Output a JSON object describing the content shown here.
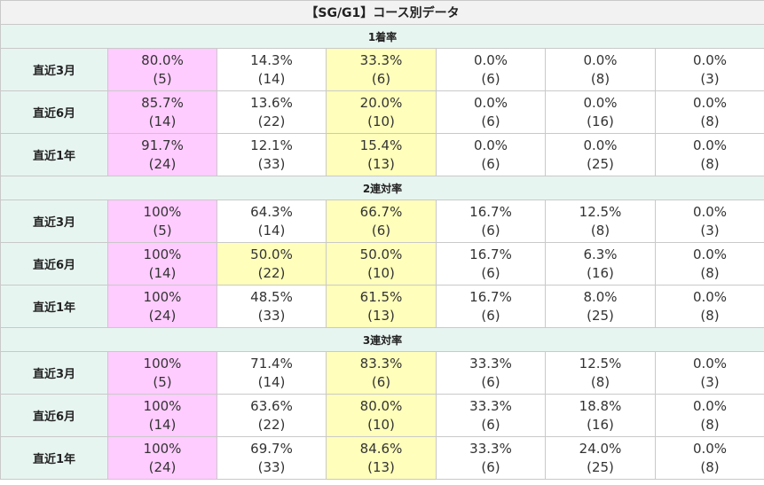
{
  "title": "【SG/G1】コース別データ",
  "colors": {
    "highlight_first": "#ffccff",
    "highlight_third": "#ffffbb"
  },
  "sections": [
    {
      "label": "1着率",
      "rows": [
        {
          "label": "直近3月",
          "cells": [
            {
              "pct": "80.0%",
              "count": "(5)",
              "hl": "pink"
            },
            {
              "pct": "14.3%",
              "count": "(14)",
              "hl": ""
            },
            {
              "pct": "33.3%",
              "count": "(6)",
              "hl": "yellow"
            },
            {
              "pct": "0.0%",
              "count": "(6)",
              "hl": ""
            },
            {
              "pct": "0.0%",
              "count": "(8)",
              "hl": ""
            },
            {
              "pct": "0.0%",
              "count": "(3)",
              "hl": ""
            }
          ]
        },
        {
          "label": "直近6月",
          "cells": [
            {
              "pct": "85.7%",
              "count": "(14)",
              "hl": "pink"
            },
            {
              "pct": "13.6%",
              "count": "(22)",
              "hl": ""
            },
            {
              "pct": "20.0%",
              "count": "(10)",
              "hl": "yellow"
            },
            {
              "pct": "0.0%",
              "count": "(6)",
              "hl": ""
            },
            {
              "pct": "0.0%",
              "count": "(16)",
              "hl": ""
            },
            {
              "pct": "0.0%",
              "count": "(8)",
              "hl": ""
            }
          ]
        },
        {
          "label": "直近1年",
          "cells": [
            {
              "pct": "91.7%",
              "count": "(24)",
              "hl": "pink"
            },
            {
              "pct": "12.1%",
              "count": "(33)",
              "hl": ""
            },
            {
              "pct": "15.4%",
              "count": "(13)",
              "hl": "yellow"
            },
            {
              "pct": "0.0%",
              "count": "(6)",
              "hl": ""
            },
            {
              "pct": "0.0%",
              "count": "(25)",
              "hl": ""
            },
            {
              "pct": "0.0%",
              "count": "(8)",
              "hl": ""
            }
          ]
        }
      ]
    },
    {
      "label": "2連対率",
      "rows": [
        {
          "label": "直近3月",
          "cells": [
            {
              "pct": "100%",
              "count": "(5)",
              "hl": "pink"
            },
            {
              "pct": "64.3%",
              "count": "(14)",
              "hl": ""
            },
            {
              "pct": "66.7%",
              "count": "(6)",
              "hl": "yellow"
            },
            {
              "pct": "16.7%",
              "count": "(6)",
              "hl": ""
            },
            {
              "pct": "12.5%",
              "count": "(8)",
              "hl": ""
            },
            {
              "pct": "0.0%",
              "count": "(3)",
              "hl": ""
            }
          ]
        },
        {
          "label": "直近6月",
          "cells": [
            {
              "pct": "100%",
              "count": "(14)",
              "hl": "pink"
            },
            {
              "pct": "50.0%",
              "count": "(22)",
              "hl": "yellow"
            },
            {
              "pct": "50.0%",
              "count": "(10)",
              "hl": "yellow"
            },
            {
              "pct": "16.7%",
              "count": "(6)",
              "hl": ""
            },
            {
              "pct": "6.3%",
              "count": "(16)",
              "hl": ""
            },
            {
              "pct": "0.0%",
              "count": "(8)",
              "hl": ""
            }
          ]
        },
        {
          "label": "直近1年",
          "cells": [
            {
              "pct": "100%",
              "count": "(24)",
              "hl": "pink"
            },
            {
              "pct": "48.5%",
              "count": "(33)",
              "hl": ""
            },
            {
              "pct": "61.5%",
              "count": "(13)",
              "hl": "yellow"
            },
            {
              "pct": "16.7%",
              "count": "(6)",
              "hl": ""
            },
            {
              "pct": "8.0%",
              "count": "(25)",
              "hl": ""
            },
            {
              "pct": "0.0%",
              "count": "(8)",
              "hl": ""
            }
          ]
        }
      ]
    },
    {
      "label": "3連対率",
      "rows": [
        {
          "label": "直近3月",
          "cells": [
            {
              "pct": "100%",
              "count": "(5)",
              "hl": "pink"
            },
            {
              "pct": "71.4%",
              "count": "(14)",
              "hl": ""
            },
            {
              "pct": "83.3%",
              "count": "(6)",
              "hl": "yellow"
            },
            {
              "pct": "33.3%",
              "count": "(6)",
              "hl": ""
            },
            {
              "pct": "12.5%",
              "count": "(8)",
              "hl": ""
            },
            {
              "pct": "0.0%",
              "count": "(3)",
              "hl": ""
            }
          ]
        },
        {
          "label": "直近6月",
          "cells": [
            {
              "pct": "100%",
              "count": "(14)",
              "hl": "pink"
            },
            {
              "pct": "63.6%",
              "count": "(22)",
              "hl": ""
            },
            {
              "pct": "80.0%",
              "count": "(10)",
              "hl": "yellow"
            },
            {
              "pct": "33.3%",
              "count": "(6)",
              "hl": ""
            },
            {
              "pct": "18.8%",
              "count": "(16)",
              "hl": ""
            },
            {
              "pct": "0.0%",
              "count": "(8)",
              "hl": ""
            }
          ]
        },
        {
          "label": "直近1年",
          "cells": [
            {
              "pct": "100%",
              "count": "(24)",
              "hl": "pink"
            },
            {
              "pct": "69.7%",
              "count": "(33)",
              "hl": ""
            },
            {
              "pct": "84.6%",
              "count": "(13)",
              "hl": "yellow"
            },
            {
              "pct": "33.3%",
              "count": "(6)",
              "hl": ""
            },
            {
              "pct": "24.0%",
              "count": "(25)",
              "hl": ""
            },
            {
              "pct": "0.0%",
              "count": "(8)",
              "hl": ""
            }
          ]
        }
      ]
    }
  ]
}
